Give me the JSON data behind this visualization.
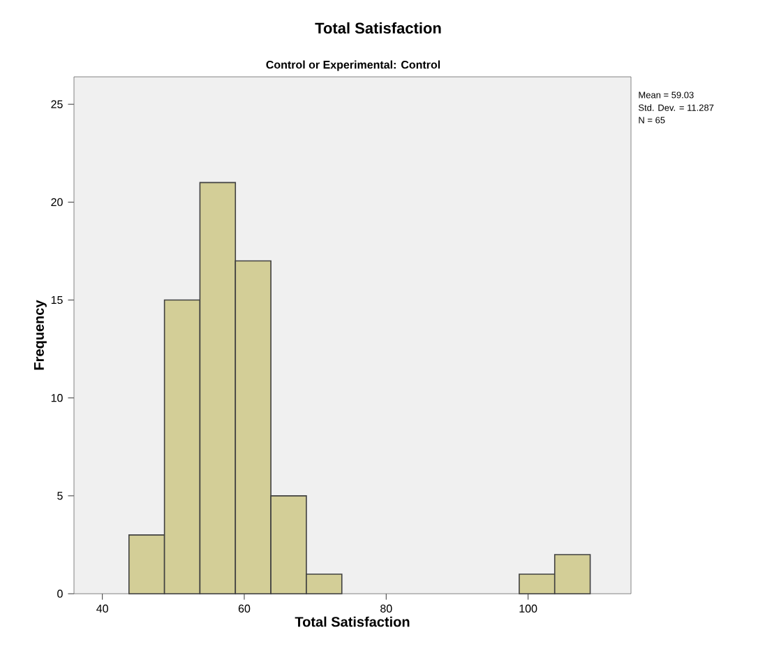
{
  "chart_data": {
    "type": "histogram",
    "title": "Total Satisfaction",
    "subtitle": "Control or Experimental: Control",
    "xlabel": "Total Satisfaction",
    "ylabel": "Frequency",
    "bins": [
      43.75,
      48.75,
      53.75,
      58.75,
      63.75,
      68.75,
      73.75,
      78.75,
      83.75,
      88.75,
      93.75,
      98.75,
      103.75,
      108.75
    ],
    "values": [
      3,
      15,
      21,
      17,
      5,
      1,
      0,
      0,
      0,
      0,
      0,
      1,
      2
    ],
    "color": "#d3ce97",
    "xlim": [
      36,
      114.5
    ],
    "ylim": [
      0,
      26.4
    ],
    "xticks": [
      40,
      60,
      80,
      100
    ],
    "yticks": [
      0,
      5,
      10,
      15,
      20,
      25
    ],
    "annotations": [
      "Mean = 59.03",
      "Std. Dev. = 11.287",
      "N = 65"
    ]
  }
}
